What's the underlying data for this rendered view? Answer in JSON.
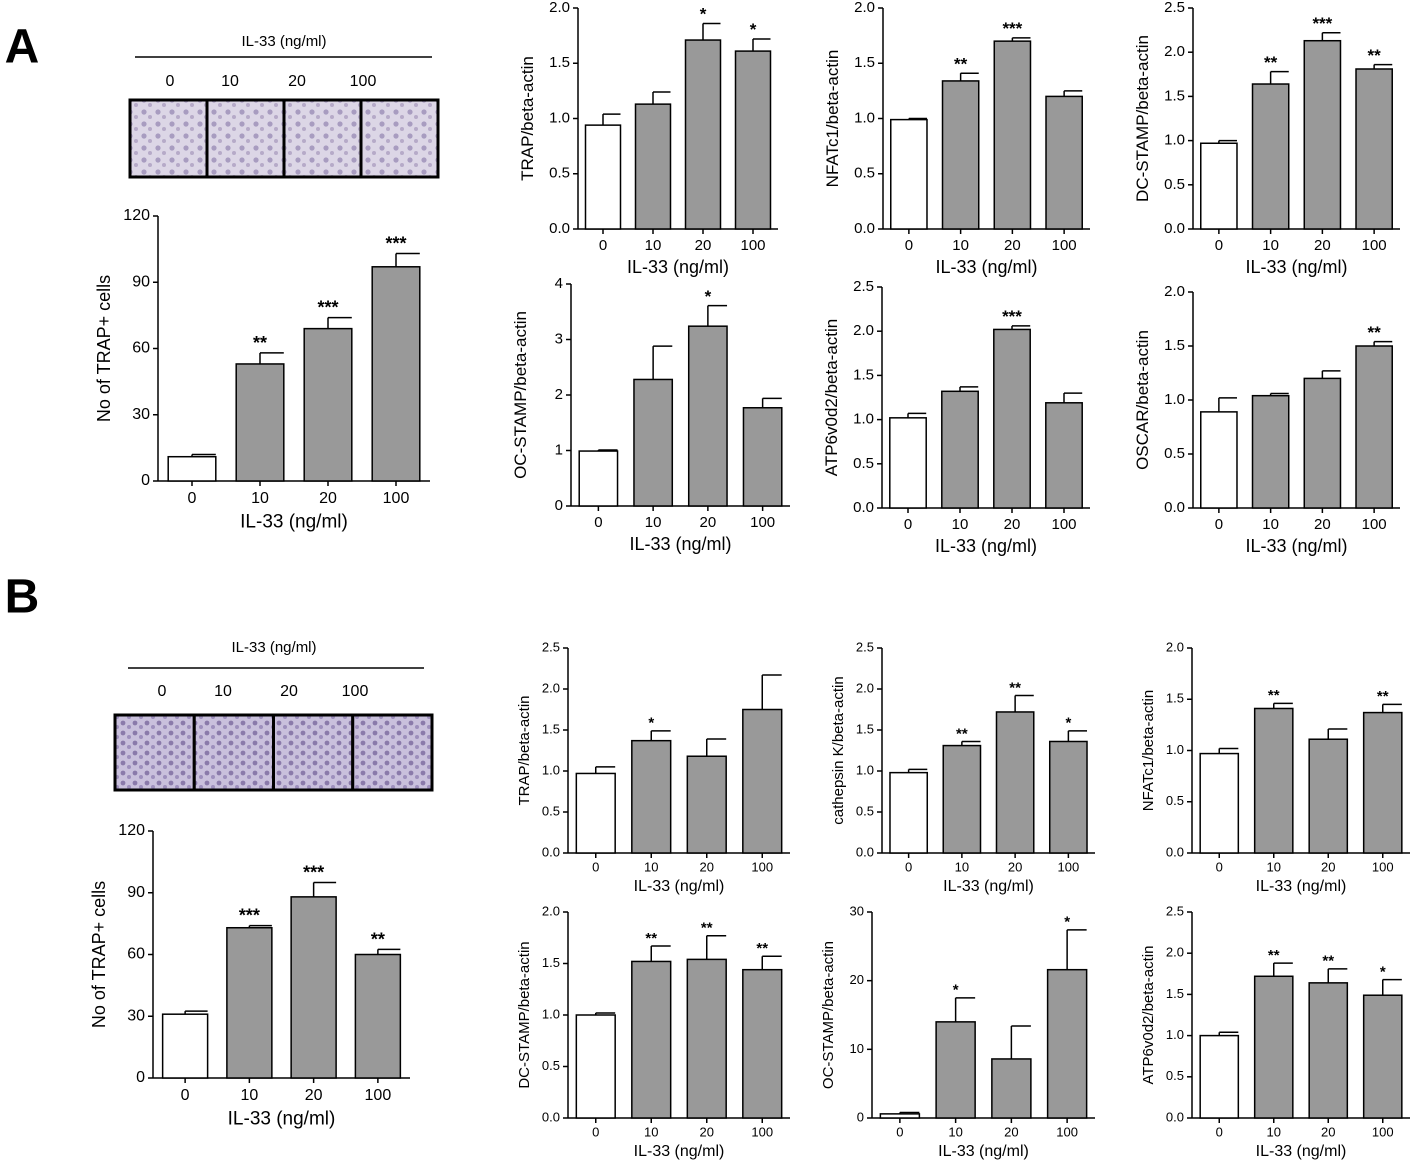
{
  "panels": [
    {
      "label": "A",
      "micrograph": {
        "title": "IL-33 (ng/ml)",
        "labels": [
          "0",
          "10",
          "20",
          "100"
        ]
      }
    },
    {
      "label": "B",
      "micrograph": {
        "title": "IL-33 (ng/ml)",
        "labels": [
          "0",
          "10",
          "20",
          "100"
        ]
      }
    }
  ],
  "chart_data": [
    {
      "type": "bar",
      "ylabel": "No of TRAP+ cells",
      "xlabel": "IL-33 (ng/ml)",
      "categories": [
        "0",
        "10",
        "20",
        "100"
      ],
      "values": [
        11,
        53,
        69,
        97
      ],
      "errors": [
        1,
        5,
        5,
        6
      ],
      "annotations": [
        null,
        "**",
        "***",
        "***"
      ],
      "colors": [
        "#ffffff",
        "#999999",
        "#999999",
        "#999999"
      ],
      "ylim": [
        0,
        120
      ],
      "yticks": [
        0,
        30,
        60,
        90,
        120
      ]
    },
    {
      "type": "bar",
      "ylabel": "TRAP/beta-actin",
      "xlabel": "IL-33 (ng/ml)",
      "categories": [
        "0",
        "10",
        "20",
        "100"
      ],
      "values": [
        0.94,
        1.13,
        1.71,
        1.61
      ],
      "errors": [
        0.1,
        0.11,
        0.15,
        0.11
      ],
      "annotations": [
        null,
        null,
        "*",
        "*"
      ],
      "colors": [
        "#ffffff",
        "#999999",
        "#999999",
        "#999999"
      ],
      "ylim": [
        0,
        2
      ],
      "yticks": [
        {
          "value": 0,
          "label": "0.0"
        },
        0.5,
        {
          "value": 1,
          "label": "1.0"
        },
        1.5,
        {
          "value": 2,
          "label": "2.0"
        }
      ]
    },
    {
      "type": "bar",
      "ylabel": "NFATc1/beta-actin",
      "xlabel": "IL-33 (ng/ml)",
      "categories": [
        "0",
        "10",
        "20",
        "100"
      ],
      "values": [
        0.99,
        1.34,
        1.7,
        1.2
      ],
      "errors": [
        0.01,
        0.07,
        0.03,
        0.05
      ],
      "annotations": [
        null,
        "**",
        "***",
        null
      ],
      "colors": [
        "#ffffff",
        "#999999",
        "#999999",
        "#999999"
      ],
      "ylim": [
        0,
        2
      ],
      "yticks": [
        {
          "value": 0,
          "label": "0.0"
        },
        0.5,
        {
          "value": 1,
          "label": "1.0"
        },
        1.5,
        {
          "value": 2,
          "label": "2.0"
        }
      ]
    },
    {
      "type": "bar",
      "ylabel": "DC-STAMP/beta-actin",
      "xlabel": "IL-33 (ng/ml)",
      "categories": [
        "0",
        "10",
        "20",
        "100"
      ],
      "values": [
        0.97,
        1.64,
        2.13,
        1.81
      ],
      "errors": [
        0.03,
        0.14,
        0.09,
        0.05
      ],
      "annotations": [
        null,
        "**",
        "***",
        "**"
      ],
      "colors": [
        "#ffffff",
        "#999999",
        "#999999",
        "#999999"
      ],
      "ylim": [
        0,
        2.5
      ],
      "yticks": [
        {
          "value": 0,
          "label": "0.0"
        },
        0.5,
        {
          "value": 1,
          "label": "1.0"
        },
        1.5,
        {
          "value": 2,
          "label": "2.0"
        },
        2.5
      ]
    },
    {
      "type": "bar",
      "ylabel": "OC-STAMP/beta-actin",
      "xlabel": "IL-33 (ng/ml)",
      "categories": [
        "0",
        "10",
        "20",
        "100"
      ],
      "values": [
        0.99,
        2.28,
        3.24,
        1.77
      ],
      "errors": [
        0.02,
        0.6,
        0.37,
        0.17
      ],
      "annotations": [
        null,
        null,
        "*",
        null
      ],
      "colors": [
        "#ffffff",
        "#999999",
        "#999999",
        "#999999"
      ],
      "ylim": [
        0,
        4
      ],
      "yticks": [
        0,
        1,
        2,
        3,
        4
      ]
    },
    {
      "type": "bar",
      "ylabel": "ATP6v0d2/beta-actin",
      "xlabel": "IL-33 (ng/ml)",
      "categories": [
        "0",
        "10",
        "20",
        "100"
      ],
      "values": [
        1.02,
        1.32,
        2.02,
        1.19
      ],
      "errors": [
        0.05,
        0.05,
        0.04,
        0.11
      ],
      "annotations": [
        null,
        null,
        "***",
        null
      ],
      "colors": [
        "#ffffff",
        "#999999",
        "#999999",
        "#999999"
      ],
      "ylim": [
        0,
        2.5
      ],
      "yticks": [
        {
          "value": 0,
          "label": "0.0"
        },
        0.5,
        {
          "value": 1,
          "label": "1.0"
        },
        1.5,
        {
          "value": 2,
          "label": "2.0"
        },
        2.5
      ]
    },
    {
      "type": "bar",
      "ylabel": "OSCAR/beta-actin",
      "xlabel": "IL-33 (ng/ml)",
      "categories": [
        "0",
        "10",
        "20",
        "100"
      ],
      "values": [
        0.89,
        1.04,
        1.2,
        1.5
      ],
      "errors": [
        0.13,
        0.02,
        0.07,
        0.04
      ],
      "annotations": [
        null,
        null,
        null,
        "**"
      ],
      "colors": [
        "#ffffff",
        "#999999",
        "#999999",
        "#999999"
      ],
      "ylim": [
        0,
        2
      ],
      "yticks": [
        {
          "value": 0,
          "label": "0.0"
        },
        0.5,
        {
          "value": 1,
          "label": "1.0"
        },
        1.5,
        {
          "value": 2,
          "label": "2.0"
        }
      ]
    },
    {
      "type": "bar",
      "ylabel": "No of TRAP+ cells",
      "xlabel": "IL-33 (ng/ml)",
      "categories": [
        "0",
        "10",
        "20",
        "100"
      ],
      "values": [
        31,
        73,
        88,
        60
      ],
      "errors": [
        1.5,
        1,
        7,
        2.5
      ],
      "annotations": [
        null,
        "***",
        "***",
        "**"
      ],
      "colors": [
        "#ffffff",
        "#999999",
        "#999999",
        "#999999"
      ],
      "ylim": [
        0,
        120
      ],
      "yticks": [
        0,
        30,
        60,
        90,
        120
      ]
    },
    {
      "type": "bar",
      "ylabel": "TRAP/beta-actin",
      "xlabel": "IL-33 (ng/ml)",
      "categories": [
        "0",
        "10",
        "20",
        "100"
      ],
      "values": [
        0.97,
        1.37,
        1.18,
        1.75
      ],
      "errors": [
        0.08,
        0.12,
        0.21,
        0.42
      ],
      "annotations": [
        null,
        "*",
        null,
        null
      ],
      "colors": [
        "#ffffff",
        "#999999",
        "#999999",
        "#999999"
      ],
      "ylim": [
        0,
        2.5
      ],
      "yticks": [
        {
          "value": 0,
          "label": "0.0"
        },
        0.5,
        {
          "value": 1,
          "label": "1.0"
        },
        1.5,
        {
          "value": 2,
          "label": "2.0"
        },
        2.5
      ]
    },
    {
      "type": "bar",
      "ylabel": "cathepsin K/beta-actin",
      "xlabel": "IL-33 (ng/ml)",
      "categories": [
        "0",
        "10",
        "20",
        "100"
      ],
      "values": [
        0.98,
        1.31,
        1.72,
        1.36
      ],
      "errors": [
        0.04,
        0.05,
        0.2,
        0.13
      ],
      "annotations": [
        null,
        "**",
        "**",
        "*"
      ],
      "colors": [
        "#ffffff",
        "#999999",
        "#999999",
        "#999999"
      ],
      "ylim": [
        0,
        2.5
      ],
      "yticks": [
        {
          "value": 0,
          "label": "0.0"
        },
        0.5,
        {
          "value": 1,
          "label": "1.0"
        },
        1.5,
        {
          "value": 2,
          "label": "2.0"
        },
        2.5
      ]
    },
    {
      "type": "bar",
      "ylabel": "NFATc1/beta-actin",
      "xlabel": "IL-33 (ng/ml)",
      "categories": [
        "0",
        "10",
        "20",
        "100"
      ],
      "values": [
        0.97,
        1.41,
        1.11,
        1.37
      ],
      "errors": [
        0.05,
        0.05,
        0.1,
        0.08
      ],
      "annotations": [
        null,
        "**",
        null,
        "**"
      ],
      "colors": [
        "#ffffff",
        "#999999",
        "#999999",
        "#999999"
      ],
      "ylim": [
        0,
        2
      ],
      "yticks": [
        {
          "value": 0,
          "label": "0.0"
        },
        0.5,
        {
          "value": 1,
          "label": "1.0"
        },
        1.5,
        {
          "value": 2,
          "label": "2.0"
        }
      ]
    },
    {
      "type": "bar",
      "ylabel": "DC-STAMP/beta-actin",
      "xlabel": "IL-33 (ng/ml)",
      "categories": [
        "0",
        "10",
        "20",
        "100"
      ],
      "values": [
        1.0,
        1.52,
        1.54,
        1.44
      ],
      "errors": [
        0.02,
        0.15,
        0.23,
        0.13
      ],
      "annotations": [
        null,
        "**",
        "**",
        "**"
      ],
      "colors": [
        "#ffffff",
        "#999999",
        "#999999",
        "#999999"
      ],
      "ylim": [
        0,
        2
      ],
      "yticks": [
        {
          "value": 0,
          "label": "0.0"
        },
        0.5,
        {
          "value": 1,
          "label": "1.0"
        },
        1.5,
        {
          "value": 2,
          "label": "2.0"
        }
      ]
    },
    {
      "type": "bar",
      "ylabel": "OC-STAMP/beta-actin",
      "xlabel": "IL-33 (ng/ml)",
      "categories": [
        "0",
        "10",
        "20",
        "100"
      ],
      "values": [
        0.6,
        14,
        8.6,
        21.6
      ],
      "errors": [
        0.2,
        3.5,
        4.8,
        5.8
      ],
      "annotations": [
        null,
        "*",
        null,
        "*"
      ],
      "colors": [
        "#ffffff",
        "#999999",
        "#999999",
        "#999999"
      ],
      "ylim": [
        0,
        30
      ],
      "yticks": [
        0,
        10,
        20,
        30
      ]
    },
    {
      "type": "bar",
      "ylabel": "ATP6v0d2/beta-actin",
      "xlabel": "IL-33 (ng/ml)",
      "categories": [
        "0",
        "10",
        "20",
        "100"
      ],
      "values": [
        1.0,
        1.72,
        1.64,
        1.49
      ],
      "errors": [
        0.04,
        0.16,
        0.17,
        0.19
      ],
      "annotations": [
        null,
        "**",
        "**",
        "*"
      ],
      "colors": [
        "#ffffff",
        "#999999",
        "#999999",
        "#999999"
      ],
      "ylim": [
        0,
        2.5
      ],
      "yticks": [
        {
          "value": 0,
          "label": "0.0"
        },
        0.5,
        {
          "value": 1,
          "label": "1.0"
        },
        1.5,
        {
          "value": 2,
          "label": "2.0"
        },
        2.5
      ]
    }
  ]
}
